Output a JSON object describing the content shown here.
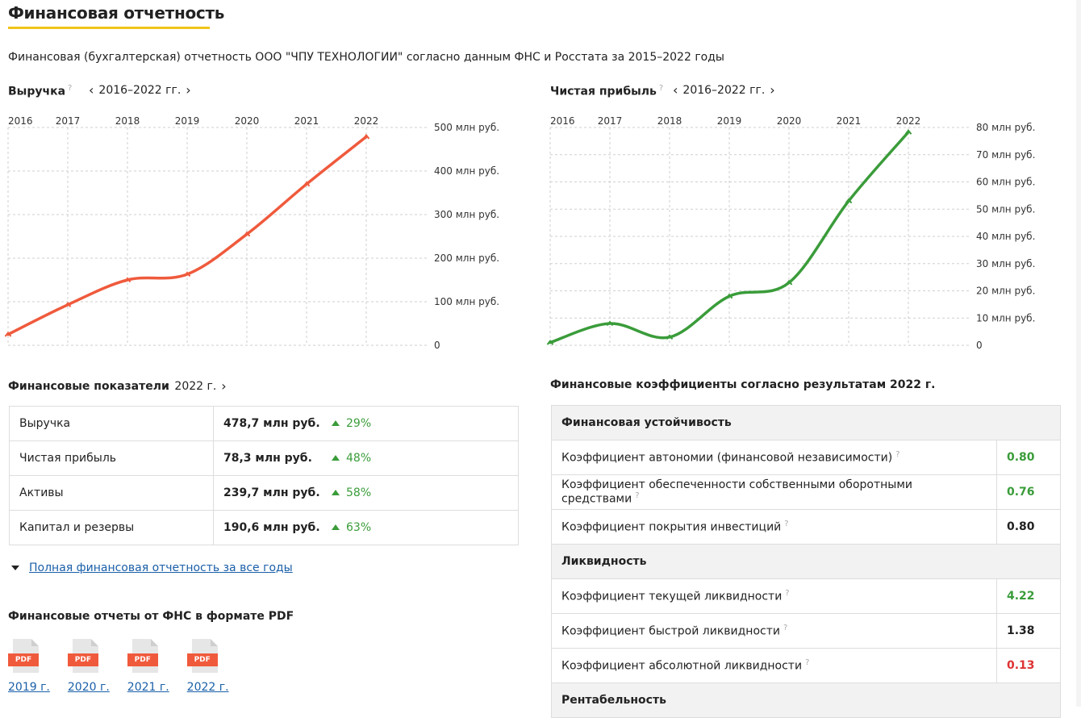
{
  "page": {
    "title": "Финансовая отчетность",
    "subtitle": "Финансовая (бухгалтерская) отчетность ООО \"ЧПУ ТЕХНОЛОГИИ\" согласно данным ФНС и Росстата за 2015–2022 годы"
  },
  "colors": {
    "accent": "#f0c419",
    "revenue_line": "#ef5a3c",
    "profit_line": "#3a9c3a",
    "link": "#1a5fa8",
    "positive": "#3a9c3a",
    "negative": "#dd3333"
  },
  "revenue_chart": {
    "title": "Выручка",
    "help": "?",
    "period": "2016–2022 гг."
  },
  "profit_chart": {
    "title": "Чистая прибыль",
    "help": "?",
    "period": "2016–2022 гг."
  },
  "chart_data": [
    {
      "type": "line",
      "title": "Выручка",
      "x": [
        "2016",
        "2017",
        "2018",
        "2019",
        "2020",
        "2021",
        "2022"
      ],
      "series": [
        {
          "values": [
            25,
            93,
            150,
            163,
            255,
            370,
            478.7
          ]
        }
      ],
      "ytick_labels": [
        "500 млн руб.",
        "400 млн руб.",
        "300 млн руб.",
        "200 млн руб.",
        "100 млн руб.",
        "0"
      ],
      "ylim": [
        0,
        500
      ],
      "grid": true
    },
    {
      "type": "line",
      "title": "Чистая прибыль",
      "x": [
        "2016",
        "2017",
        "2018",
        "2019",
        "2020",
        "2021",
        "2022"
      ],
      "series": [
        {
          "values": [
            1,
            8,
            3,
            18,
            23,
            53,
            78.3
          ]
        }
      ],
      "ytick_labels": [
        "80 млн руб.",
        "70 млн руб.",
        "60 млн руб.",
        "50 млн руб.",
        "40 млн руб.",
        "30 млн руб.",
        "20 млн руб.",
        "10 млн руб.",
        "0"
      ],
      "ylim": [
        0,
        80
      ],
      "grid": true
    }
  ],
  "indicators": {
    "title": "Финансовые показатели",
    "period": "2022 г.",
    "rows": [
      {
        "label": "Выручка",
        "value": "478,7 млн руб.",
        "change": "29%"
      },
      {
        "label": "Чистая прибыль",
        "value": "78,3 млн руб.",
        "change": "48%"
      },
      {
        "label": "Активы",
        "value": "239,7 млн руб.",
        "change": "58%"
      },
      {
        "label": "Капитал и резервы",
        "value": "190,6 млн руб.",
        "change": "63%"
      }
    ]
  },
  "full_report_link": "Полная финансовая отчетность за все годы",
  "pdf": {
    "title": "Финансовые отчеты от ФНС в формате PDF",
    "badge": "PDF",
    "years": [
      "2019 г.",
      "2020 г.",
      "2021 г.",
      "2022 г."
    ]
  },
  "ratios": {
    "title": "Финансовые коэффициенты согласно результатам 2022 г.",
    "groups": [
      {
        "name": "Финансовая устойчивость",
        "rows": [
          {
            "label": "Коэффициент автономии (финансовой независимости)",
            "value": "0.80",
            "status": "green"
          },
          {
            "label": "Коэффициент обеспеченности собственными оборотными средствами",
            "value": "0.76",
            "status": "green"
          },
          {
            "label": "Коэффициент покрытия инвестиций",
            "value": "0.80",
            "status": "dark"
          }
        ]
      },
      {
        "name": "Ликвидность",
        "rows": [
          {
            "label": "Коэффициент текущей ликвидности",
            "value": "4.22",
            "status": "green"
          },
          {
            "label": "Коэффициент быстрой ликвидности",
            "value": "1.38",
            "status": "dark"
          },
          {
            "label": "Коэффициент абсолютной ликвидности",
            "value": "0.13",
            "status": "red"
          }
        ]
      },
      {
        "name": "Рентабельность",
        "rows": []
      }
    ]
  }
}
